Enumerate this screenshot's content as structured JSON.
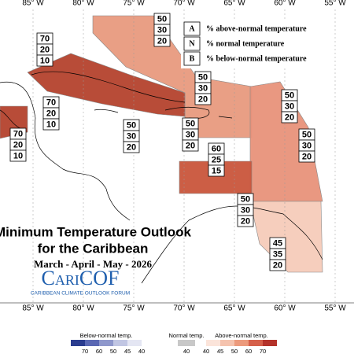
{
  "map": {
    "title": "Minimum Temperature Outlook",
    "subtitle": "for the Caribbean",
    "period": "March - April - May - 2026",
    "logo": "CariCOF",
    "logo_caption": "CARIBBEAN CLIMATE OUTLOOK FORUM",
    "lon_labels": [
      "85° W",
      "80° W",
      "75° W",
      "70° W",
      "65° W",
      "60° W",
      "55° W"
    ],
    "key": [
      {
        "letter": "A",
        "text": "% above-normal temperature"
      },
      {
        "letter": "N",
        "text": "% normal temperature"
      },
      {
        "letter": "B",
        "text": "% below-normal temperature"
      }
    ],
    "regions": [
      {
        "color": "#e89a7e",
        "values": [
          50,
          30,
          20
        ]
      },
      {
        "color": "#b4422d",
        "values": [
          70,
          20,
          10
        ]
      },
      {
        "color": "#b4422d",
        "values": [
          70,
          20,
          10
        ]
      },
      {
        "color": "#e8927a",
        "values": [
          50,
          30,
          20
        ]
      },
      {
        "color": "#c9553b",
        "values": [
          60,
          25,
          15
        ]
      },
      {
        "color": "#f6cbb9",
        "values": [
          45,
          35,
          20
        ]
      }
    ],
    "boxes": [
      {
        "values": [
          70,
          20,
          10
        ]
      },
      {
        "values": [
          50,
          30,
          20
        ]
      },
      {
        "values": [
          50,
          30,
          20
        ]
      },
      {
        "values": [
          70,
          20,
          10
        ]
      },
      {
        "values": [
          70,
          20,
          10
        ]
      },
      {
        "values": [
          50,
          30,
          20
        ]
      },
      {
        "values": [
          50,
          30,
          20
        ]
      },
      {
        "values": [
          50,
          30,
          20
        ]
      },
      {
        "values": [
          60,
          25,
          15
        ]
      },
      {
        "values": [
          50,
          30,
          20
        ]
      },
      {
        "values": [
          50,
          30,
          20
        ]
      },
      {
        "values": [
          45,
          35,
          20
        ]
      }
    ],
    "colorbar": {
      "below": {
        "label": "Below-normal temp.",
        "ticks": [
          70,
          60,
          50,
          45,
          40
        ]
      },
      "normal": {
        "label": "Normal temp.",
        "ticks": [
          40
        ]
      },
      "above": {
        "label": "Above-normal temp.",
        "ticks": [
          40,
          45,
          50,
          60,
          70
        ]
      }
    }
  }
}
